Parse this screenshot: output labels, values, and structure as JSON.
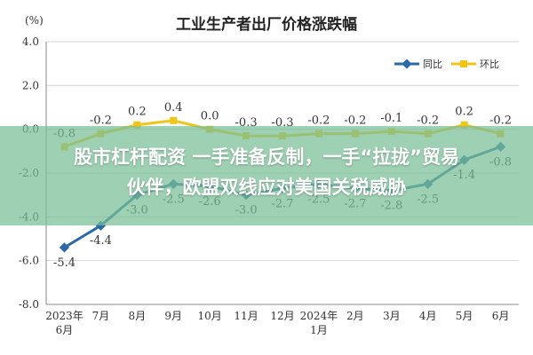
{
  "chart_data": {
    "type": "line",
    "title": "工业生产者出厂价格涨跌幅",
    "yunit": "(%)",
    "ylim": [
      -8.0,
      4.0
    ],
    "yticks": [
      "4.0",
      "2.0",
      "0.0",
      "-2.0",
      "-4.0",
      "-6.0",
      "-8.0"
    ],
    "categories": [
      "2023年6月",
      "7月",
      "8月",
      "9月",
      "10月",
      "11月",
      "12月",
      "2024年1月",
      "2月",
      "3月",
      "4月",
      "5月",
      "6月"
    ],
    "category_labels": [
      [
        "2023年",
        "6月"
      ],
      [
        "7月"
      ],
      [
        "8月"
      ],
      [
        "9月"
      ],
      [
        "10月"
      ],
      [
        "11月"
      ],
      [
        "12月"
      ],
      [
        "2024年",
        "1月"
      ],
      [
        "2月"
      ],
      [
        "3月"
      ],
      [
        "4月"
      ],
      [
        "5月"
      ],
      [
        "6月"
      ]
    ],
    "series": [
      {
        "name": "同比",
        "color": "#2b6aa6",
        "values": [
          -5.4,
          -4.4,
          -3.0,
          -2.5,
          -2.6,
          -3.0,
          -2.7,
          -2.5,
          -2.7,
          -2.8,
          -2.5,
          -1.4,
          -0.8
        ],
        "labels": [
          "-5.4",
          "-4.4",
          "-3.0",
          "-2.5",
          "-2.6",
          "-3.0",
          "-2.7",
          "-2.5",
          "-2.7",
          "-2.8",
          "-2.5",
          "-1.4",
          "-0.8"
        ]
      },
      {
        "name": "环比",
        "color": "#f0c419",
        "values": [
          -0.8,
          -0.2,
          0.2,
          0.4,
          0.0,
          -0.3,
          -0.3,
          -0.2,
          -0.2,
          -0.1,
          -0.2,
          0.2,
          -0.2
        ],
        "labels": [
          "-0.8",
          "-0.2",
          "0.2",
          "0.4",
          "0.0",
          "-0.3",
          "-0.3",
          "-0.2",
          "-0.2",
          "-0.1",
          "-0.2",
          "0.2",
          "-0.2"
        ]
      }
    ],
    "grid": true,
    "legend_position": "top-right"
  },
  "overlay": {
    "line1": "股市杠杆配资 一手准备反制，一手“拉拢”贸易",
    "line2": "伙伴，欧盟双线应对美国关税威胁"
  }
}
